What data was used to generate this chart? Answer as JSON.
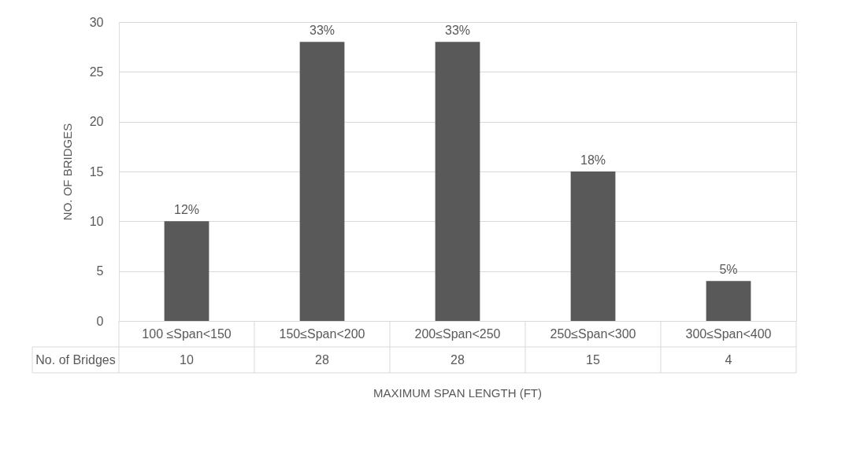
{
  "chart_data": {
    "type": "bar",
    "xlabel": "MAXIMUM SPAN LENGTH (FT)",
    "ylabel": "NO. OF BRIDGES",
    "categories": [
      "100 ≤Span<150",
      "150≤Span<200",
      "200≤Span<250",
      "250≤Span<300",
      "300≤Span<400"
    ],
    "values": [
      10,
      28,
      28,
      15,
      4
    ],
    "value_labels": [
      "10",
      "28",
      "28",
      "15",
      "4"
    ],
    "annotations": [
      "No. of Bridges",
      {
        "text": "12%",
        "x": "100 ≤Span<150",
        "y": 10
      },
      {
        "text": "33%",
        "x": "150≤Span<200",
        "y": 28
      },
      {
        "text": "33%",
        "x": "200≤Span<250",
        "y": 28
      },
      {
        "text": "18%",
        "x": "250≤Span<300",
        "y": 15
      },
      {
        "text": "5%",
        "x": "300≤Span<400",
        "y": 4
      }
    ],
    "color": "#595959",
    "ylim": [
      0,
      30
    ],
    "yticks": [
      0,
      5,
      10,
      15,
      20,
      25,
      30
    ],
    "grid": "y"
  }
}
